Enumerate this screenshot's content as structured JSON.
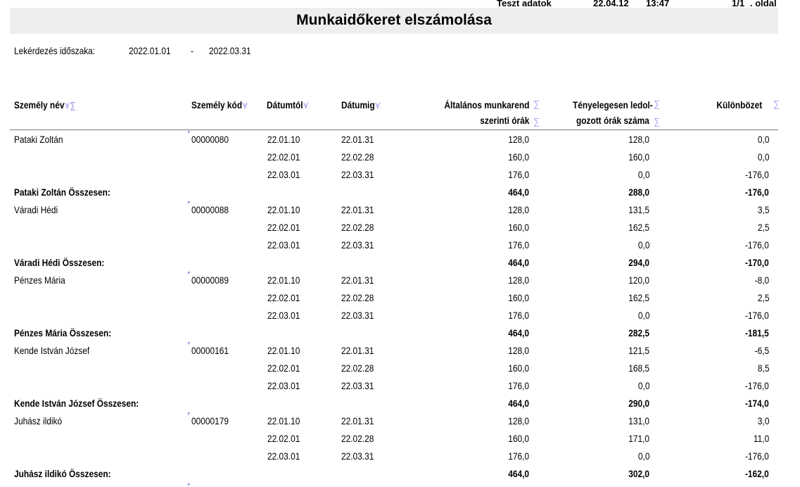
{
  "header_strip": {
    "source": "Teszt adatok",
    "date": "22.04.12",
    "time": "13:47",
    "page": "1/1",
    "page_label": ". oldal"
  },
  "title": "Munkaidőkeret elszámolása",
  "period": {
    "label": "Lekérdezés időszaka:",
    "from": "2022.01.01",
    "sep": "-",
    "to": "2022.03.31"
  },
  "columns": {
    "name": "Személy név",
    "code": "Személy kód",
    "from": "Dátumtól",
    "to": "Dátumig",
    "general_1": "Általános munkarend",
    "general_2": "szerinti órák",
    "actual_1": "Tényelegesen ledol-",
    "actual_2": "gozott órák száma",
    "diff": "Különbözet"
  },
  "icons": {
    "filter": "filter-icon",
    "sum": "sigma-icon"
  },
  "persons": [
    {
      "name": "Pataki Zoltán",
      "code": "00000080",
      "periods": [
        [
          "22.01.10",
          "22.01.31",
          "128,0",
          "128,0",
          "0,0"
        ],
        [
          "22.02.01",
          "22.02.28",
          "160,0",
          "160,0",
          "0,0"
        ],
        [
          "22.03.01",
          "22.03.31",
          "176,0",
          "0,0",
          "-176,0"
        ]
      ],
      "total_label": "Pataki Zoltán Összesen:",
      "total": [
        "464,0",
        "288,0",
        "-176,0"
      ]
    },
    {
      "name": "Váradi Hédi",
      "code": "00000088",
      "periods": [
        [
          "22.01.10",
          "22.01.31",
          "128,0",
          "131,5",
          "3,5"
        ],
        [
          "22.02.01",
          "22.02.28",
          "160,0",
          "162,5",
          "2,5"
        ],
        [
          "22.03.01",
          "22.03.31",
          "176,0",
          "0,0",
          "-176,0"
        ]
      ],
      "total_label": "Váradi Hédi Összesen:",
      "total": [
        "464,0",
        "294,0",
        "-170,0"
      ]
    },
    {
      "name": "Pénzes Mária",
      "code": "00000089",
      "periods": [
        [
          "22.01.10",
          "22.01.31",
          "128,0",
          "120,0",
          "-8,0"
        ],
        [
          "22.02.01",
          "22.02.28",
          "160,0",
          "162,5",
          "2,5"
        ],
        [
          "22.03.01",
          "22.03.31",
          "176,0",
          "0,0",
          "-176,0"
        ]
      ],
      "total_label": "Pénzes Mária Összesen:",
      "total": [
        "464,0",
        "282,5",
        "-181,5"
      ]
    },
    {
      "name": "Kende István József",
      "code": "00000161",
      "periods": [
        [
          "22.01.10",
          "22.01.31",
          "128,0",
          "121,5",
          "-6,5"
        ],
        [
          "22.02.01",
          "22.02.28",
          "160,0",
          "168,5",
          "8,5"
        ],
        [
          "22.03.01",
          "22.03.31",
          "176,0",
          "0,0",
          "-176,0"
        ]
      ],
      "total_label": "Kende István József Összesen:",
      "total": [
        "464,0",
        "290,0",
        "-174,0"
      ]
    },
    {
      "name": "Juhász ildikó",
      "code": "00000179",
      "periods": [
        [
          "22.01.10",
          "22.01.31",
          "128,0",
          "131,0",
          "3,0"
        ],
        [
          "22.02.01",
          "22.02.28",
          "160,0",
          "171,0",
          "11,0"
        ],
        [
          "22.03.01",
          "22.03.31",
          "176,0",
          "0,0",
          "-176,0"
        ]
      ],
      "total_label": "Juhász ildikó Összesen:",
      "total": [
        "464,0",
        "302,0",
        "-162,0"
      ]
    }
  ]
}
